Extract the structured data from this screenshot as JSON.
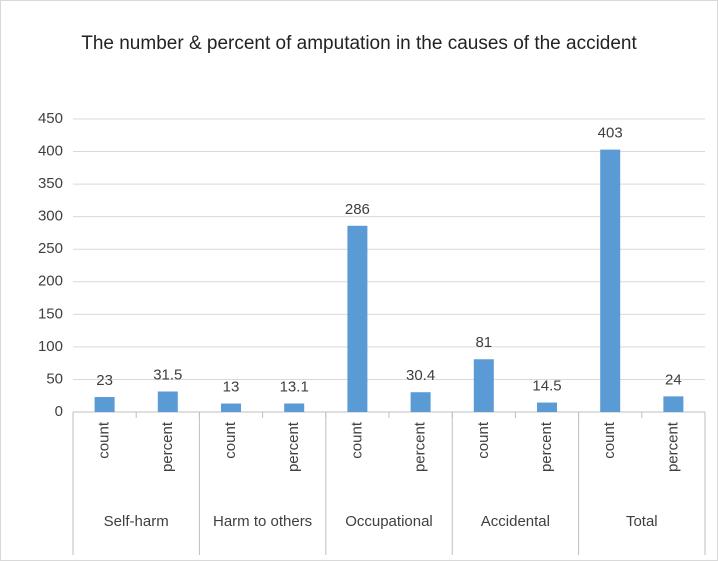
{
  "chart_data": {
    "type": "bar",
    "title": "The number & percent of amputation in the causes of the accident",
    "categories": [
      "count",
      "percent",
      "count",
      "percent",
      "count",
      "percent",
      "count",
      "percent",
      "count",
      "percent"
    ],
    "groups": [
      "Self-harm",
      "Harm to others",
      "Occupational",
      "Accidental",
      "Total"
    ],
    "values": [
      23,
      31.5,
      13,
      13.1,
      286,
      30.4,
      81,
      14.5,
      403,
      24
    ],
    "color": "#5b9bd5",
    "ylim": [
      0,
      450
    ],
    "yticks": [
      0,
      50,
      100,
      150,
      200,
      250,
      300,
      350,
      400,
      450
    ],
    "grid": true
  }
}
